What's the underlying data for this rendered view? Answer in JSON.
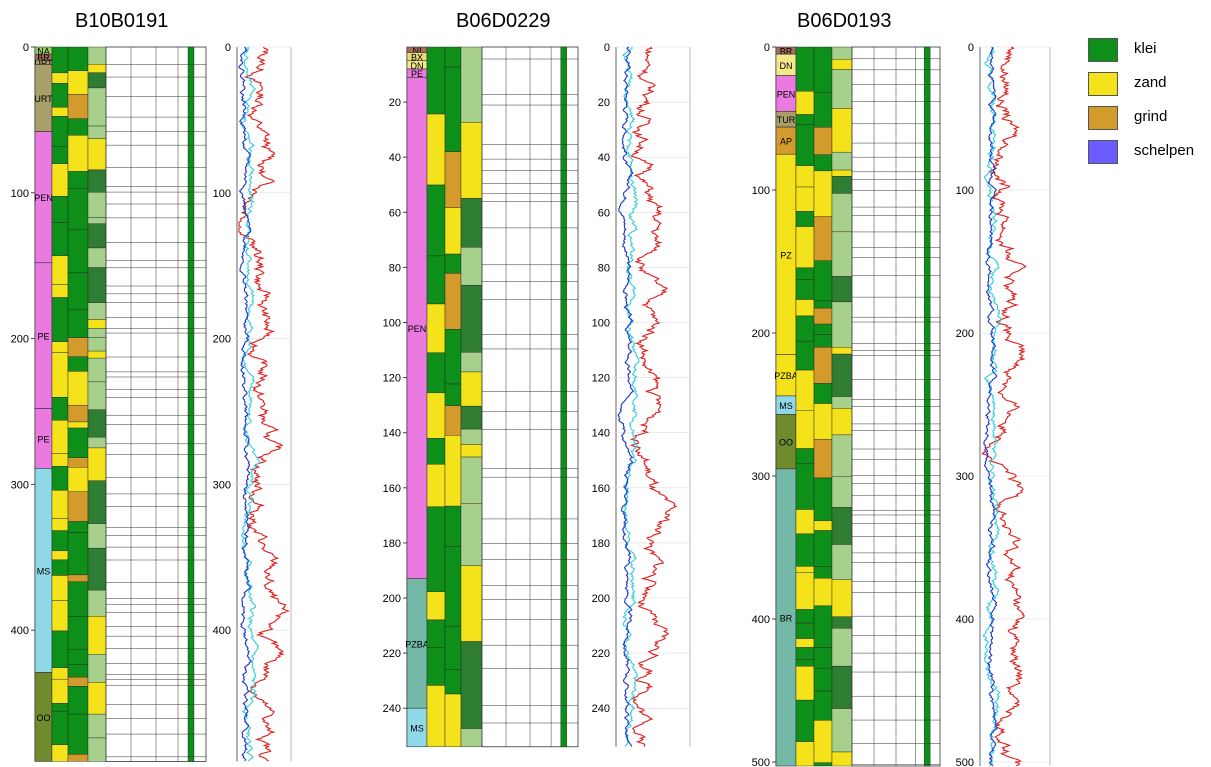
{
  "boreholes": [
    {
      "id": "B10B0191",
      "units": [
        {
          "name": "NA",
          "from": 0,
          "to": 5,
          "color": "#9ccc65"
        },
        {
          "name": "BR",
          "from": 5,
          "to": 9,
          "color": "#a66d5a"
        },
        {
          "name": "URT",
          "from": 9,
          "to": 12,
          "color": "#a89f6a"
        },
        {
          "name": "URT",
          "from": 12,
          "to": 58,
          "color": "#a89f6a"
        },
        {
          "name": "PEN",
          "from": 58,
          "to": 148,
          "color": "#ea7ae0"
        },
        {
          "name": "PE",
          "from": 148,
          "to": 248,
          "color": "#ea7ae0"
        },
        {
          "name": "PE",
          "from": 248,
          "to": 289,
          "color": "#ea7ae0"
        },
        {
          "name": "MS",
          "from": 289,
          "to": 429,
          "color": "#8fd8e8"
        },
        {
          "name": "OO",
          "from": 429,
          "to": 490,
          "color": "#6f8b2e"
        }
      ],
      "depth_ticks": [
        "0",
        "100",
        "200",
        "300",
        "400"
      ],
      "log_ticks": [
        "0",
        "100",
        "200",
        "300",
        "400"
      ]
    },
    {
      "id": "B06D0229",
      "units": [
        {
          "name": "NI",
          "from": 0,
          "to": 2,
          "color": "#a66d5a"
        },
        {
          "name": "BX",
          "from": 2,
          "to": 5,
          "color": "#ead87a"
        },
        {
          "name": "DN",
          "from": 5,
          "to": 8,
          "color": "#f5e88a"
        },
        {
          "name": "PE",
          "from": 8,
          "to": 11,
          "color": "#ea7ae0"
        },
        {
          "name": "PEN",
          "from": 11,
          "to": 193,
          "color": "#ea7ae0"
        },
        {
          "name": "PE",
          "from": 193,
          "to": 193,
          "color": "#ea7ae0"
        },
        {
          "name": "PZBA",
          "from": 193,
          "to": 240,
          "color": "#74b8a8"
        },
        {
          "name": "MS",
          "from": 240,
          "to": 254,
          "color": "#8fd8e8"
        }
      ],
      "depth_ticks": [
        "20",
        "40",
        "60",
        "80",
        "100",
        "120",
        "140",
        "160",
        "180",
        "200",
        "220",
        "240"
      ],
      "log_ticks": [
        "0",
        "20",
        "40",
        "60",
        "80",
        "100",
        "120",
        "140",
        "160",
        "180",
        "200",
        "220",
        "240"
      ]
    },
    {
      "id": "B06D0193",
      "units": [
        {
          "name": "BR",
          "from": 0,
          "to": 5,
          "color": "#a66d5a"
        },
        {
          "name": "DN",
          "from": 5,
          "to": 20,
          "color": "#f5e88a"
        },
        {
          "name": "PEN",
          "from": 20,
          "to": 45,
          "color": "#ea7ae0"
        },
        {
          "name": "TUR",
          "from": 45,
          "to": 56,
          "color": "#a89f6a"
        },
        {
          "name": "AP",
          "from": 56,
          "to": 75,
          "color": "#d39a2c"
        },
        {
          "name": "PZ",
          "from": 75,
          "to": 215,
          "color": "#f4e21a"
        },
        {
          "name": "PZBA",
          "from": 215,
          "to": 244,
          "color": "#f4e21a"
        },
        {
          "name": "MS",
          "from": 244,
          "to": 257,
          "color": "#8fd8e8"
        },
        {
          "name": "OO",
          "from": 257,
          "to": 295,
          "color": "#6f8b2e"
        },
        {
          "name": "BR",
          "from": 295,
          "to": 505,
          "color": "#74b8a8"
        }
      ],
      "depth_ticks": [
        "0",
        "100",
        "200",
        "300",
        "400",
        "500"
      ],
      "log_ticks": [
        "0",
        "100",
        "200",
        "300",
        "400",
        "500"
      ]
    }
  ],
  "legend": [
    {
      "label": "klei",
      "color": "#0d8f1a"
    },
    {
      "label": "zand",
      "color": "#f4e21a"
    },
    {
      "label": "grind",
      "color": "#d39a2c"
    },
    {
      "label": "schelpen",
      "color": "#6a5cff"
    }
  ]
}
